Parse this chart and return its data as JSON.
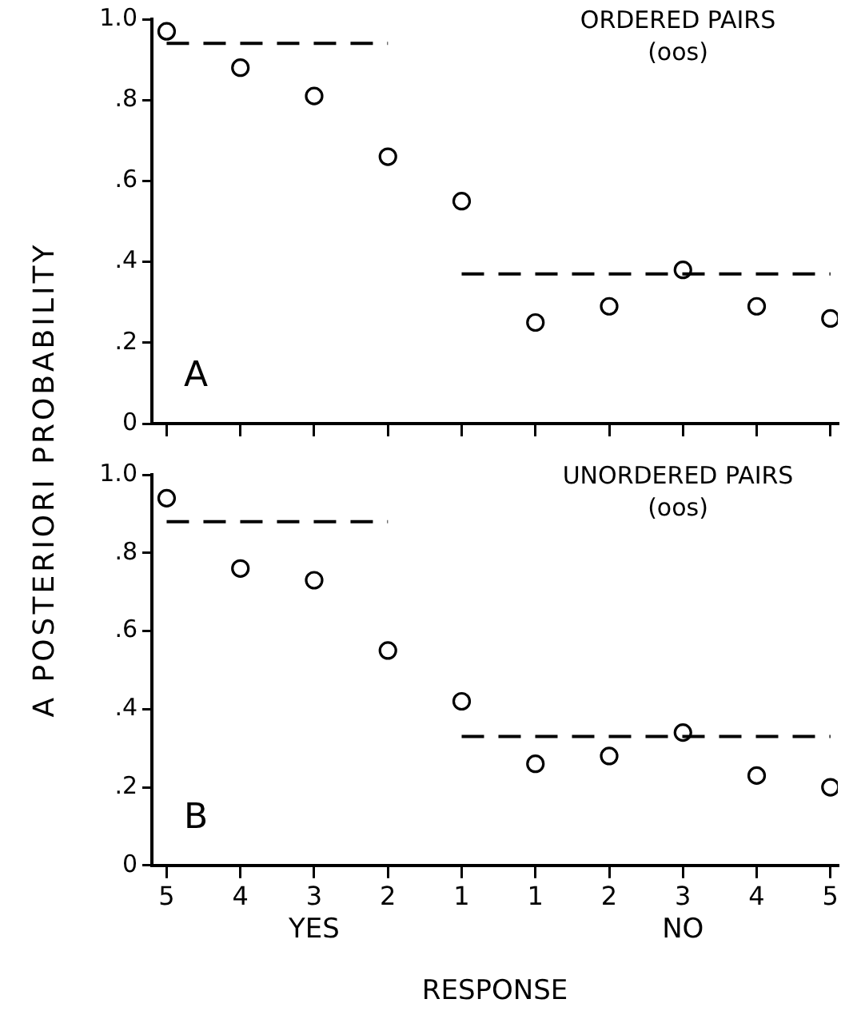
{
  "chart_data": [
    {
      "type": "scatter",
      "title": "ORDERED PAIRS",
      "subtitle": "(oos)",
      "ylabel": "A POSTERIORI PROBABILITY",
      "annotations": [
        "A"
      ],
      "tick_labels": "y",
      "grid": false,
      "legend": false,
      "categories": [
        "5",
        "4",
        "3",
        "2",
        "1",
        "1",
        "2",
        "3",
        "4",
        "5"
      ],
      "ylim": [
        0,
        1
      ],
      "yticks": [
        0,
        {
          "value": 0.2,
          "label": ".2"
        },
        {
          "value": 0.4,
          "label": ".4"
        },
        {
          "value": 0.6,
          "label": ".6"
        },
        {
          "value": 0.8,
          "label": ".8"
        },
        {
          "value": 1,
          "label": "1.0"
        }
      ],
      "series": [
        {
          "marker": "circle",
          "color": "#000000",
          "values": [
            0.97,
            0.88,
            0.81,
            0.66,
            0.55,
            0.25,
            0.29,
            0.38,
            0.29,
            0.26
          ]
        },
        {
          "type": "line",
          "marker": "none",
          "line_style": "dashed",
          "color": "#000000",
          "values": [
            0.94,
            0.94,
            0.94,
            0.94,
            null,
            null,
            null,
            null,
            null,
            null
          ]
        },
        {
          "type": "line",
          "marker": "none",
          "line_style": "dashed",
          "color": "#000000",
          "values": [
            null,
            null,
            null,
            null,
            0.37,
            0.37,
            0.37,
            0.37,
            0.37,
            0.37
          ]
        }
      ]
    },
    {
      "type": "scatter",
      "title": "UNORDERED PAIRS",
      "subtitle": "(oos)",
      "xlabel": "RESPONSE",
      "annotations": [
        "B",
        "YES",
        "NO"
      ],
      "grid": false,
      "legend": false,
      "categories": [
        "5",
        "4",
        "3",
        "2",
        "1",
        "1",
        "2",
        "3",
        "4",
        "5"
      ],
      "ylim": [
        0,
        1
      ],
      "yticks": [
        0,
        {
          "value": 0.2,
          "label": ".2"
        },
        {
          "value": 0.4,
          "label": ".4"
        },
        {
          "value": 0.6,
          "label": ".6"
        },
        {
          "value": 0.8,
          "label": ".8"
        },
        {
          "value": 1,
          "label": "1.0"
        }
      ],
      "series": [
        {
          "marker": "circle",
          "color": "#000000",
          "values": [
            0.94,
            0.76,
            0.73,
            0.55,
            0.42,
            0.26,
            0.28,
            0.34,
            0.23,
            0.2
          ]
        },
        {
          "type": "line",
          "marker": "none",
          "line_style": "dashed",
          "color": "#000000",
          "values": [
            0.88,
            0.88,
            0.88,
            0.88,
            null,
            null,
            null,
            null,
            null,
            null
          ]
        },
        {
          "type": "line",
          "marker": "none",
          "line_style": "dashed",
          "color": "#000000",
          "values": [
            null,
            null,
            null,
            null,
            0.33,
            0.33,
            0.33,
            0.33,
            0.33,
            0.33
          ]
        }
      ]
    }
  ]
}
